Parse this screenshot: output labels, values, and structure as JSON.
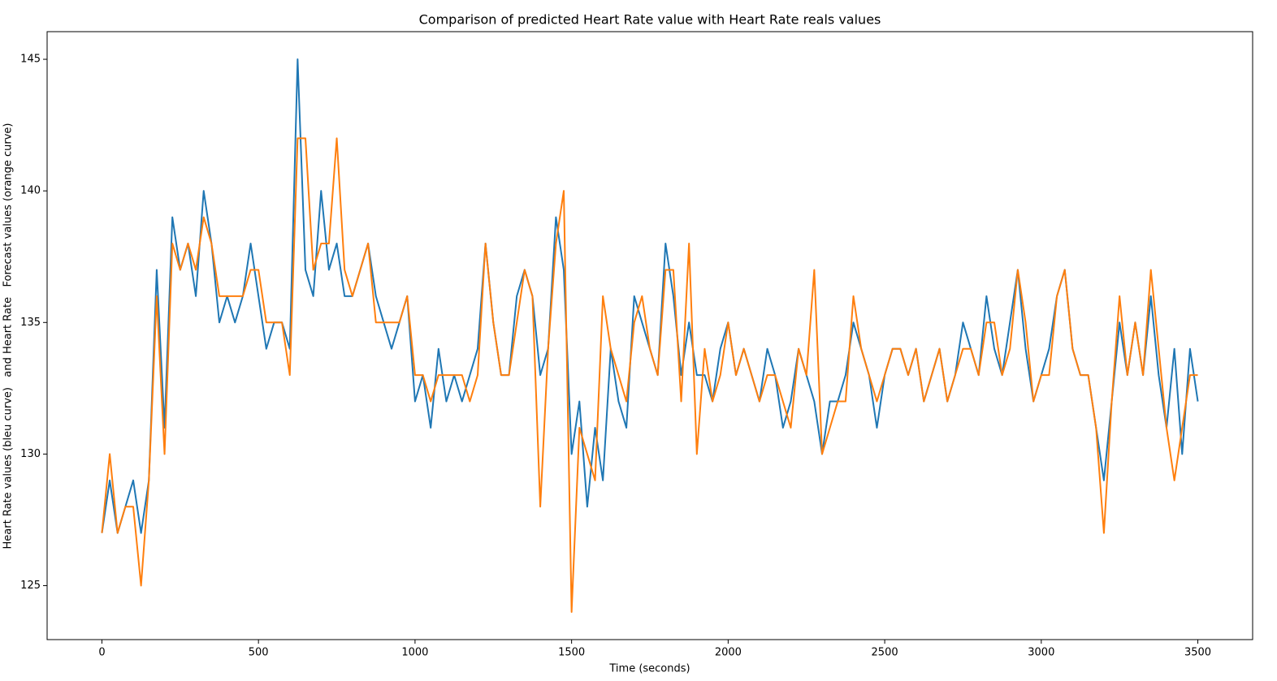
{
  "chart_data": {
    "type": "line",
    "title": "Comparison of predicted Heart Rate value with Heart Rate reals values",
    "xlabel": "Time (seconds)",
    "ylabel": "Heart Rate values (bleu curve)   and Heart Rate   Forecast values (orange curve)",
    "x": [
      0,
      25,
      50,
      75,
      100,
      125,
      150,
      175,
      200,
      225,
      250,
      275,
      300,
      325,
      350,
      375,
      400,
      425,
      450,
      475,
      500,
      525,
      550,
      575,
      600,
      625,
      650,
      675,
      700,
      725,
      750,
      775,
      800,
      825,
      850,
      875,
      900,
      925,
      950,
      975,
      1000,
      1025,
      1050,
      1075,
      1100,
      1125,
      1150,
      1175,
      1200,
      1225,
      1250,
      1275,
      1300,
      1325,
      1350,
      1375,
      1400,
      1425,
      1450,
      1475,
      1500,
      1525,
      1550,
      1575,
      1600,
      1625,
      1650,
      1675,
      1700,
      1725,
      1750,
      1775,
      1800,
      1825,
      1850,
      1875,
      1900,
      1925,
      1950,
      1975,
      2000,
      2025,
      2050,
      2075,
      2100,
      2125,
      2150,
      2175,
      2200,
      2225,
      2250,
      2275,
      2300,
      2325,
      2350,
      2375,
      2400,
      2425,
      2450,
      2475,
      2500,
      2525,
      2550,
      2575,
      2600,
      2625,
      2650,
      2675,
      2700,
      2725,
      2750,
      2775,
      2800,
      2825,
      2850,
      2875,
      2900,
      2925,
      2950,
      2975,
      3000,
      3025,
      3050,
      3075,
      3100,
      3125,
      3150,
      3175,
      3200,
      3225,
      3250,
      3275,
      3300,
      3325,
      3350,
      3375,
      3400,
      3425,
      3450,
      3475,
      3500
    ],
    "series": [
      {
        "color": "#1f77b4",
        "values": [
          127,
          129,
          127,
          128,
          129,
          127,
          129,
          137,
          131,
          139,
          137,
          138,
          136,
          140,
          138,
          135,
          136,
          135,
          136,
          138,
          136,
          134,
          135,
          135,
          134,
          145,
          137,
          136,
          140,
          137,
          138,
          136,
          136,
          137,
          138,
          136,
          135,
          134,
          135,
          136,
          132,
          133,
          131,
          134,
          132,
          133,
          132,
          133,
          134,
          138,
          135,
          133,
          133,
          136,
          137,
          136,
          133,
          134,
          139,
          137,
          130,
          132,
          128,
          131,
          129,
          134,
          132,
          131,
          136,
          135,
          134,
          133,
          138,
          136,
          133,
          135,
          133,
          133,
          132,
          134,
          135,
          133,
          134,
          133,
          132,
          134,
          133,
          131,
          132,
          134,
          133,
          132,
          130,
          132,
          132,
          133,
          135,
          134,
          133,
          131,
          133,
          134,
          134,
          133,
          134,
          132,
          133,
          134,
          132,
          133,
          135,
          134,
          133,
          136,
          134,
          133,
          135,
          137,
          134,
          132,
          133,
          134,
          136,
          137,
          134,
          133,
          133,
          131,
          129,
          132,
          135,
          133,
          135,
          133,
          136,
          133,
          131,
          134,
          130,
          134,
          132
        ]
      },
      {
        "color": "#ff7f0e",
        "values": [
          127,
          130,
          127,
          128,
          128,
          125,
          129,
          136,
          130,
          138,
          137,
          138,
          137,
          139,
          138,
          136,
          136,
          136,
          136,
          137,
          137,
          135,
          135,
          135,
          133,
          142,
          142,
          137,
          138,
          138,
          142,
          137,
          136,
          137,
          138,
          135,
          135,
          135,
          135,
          136,
          133,
          133,
          132,
          133,
          133,
          133,
          133,
          132,
          133,
          138,
          135,
          133,
          133,
          135,
          137,
          136,
          128,
          134,
          138,
          140,
          124,
          131,
          130,
          129,
          136,
          134,
          133,
          132,
          135,
          136,
          134,
          133,
          137,
          137,
          132,
          138,
          130,
          134,
          132,
          133,
          135,
          133,
          134,
          133,
          132,
          133,
          133,
          132,
          131,
          134,
          133,
          137,
          130,
          131,
          132,
          132,
          136,
          134,
          133,
          132,
          133,
          134,
          134,
          133,
          134,
          132,
          133,
          134,
          132,
          133,
          134,
          134,
          133,
          135,
          135,
          133,
          134,
          137,
          135,
          132,
          133,
          133,
          136,
          137,
          134,
          133,
          133,
          131,
          127,
          132,
          136,
          133,
          135,
          133,
          137,
          134,
          131,
          129,
          131,
          133,
          133
        ]
      }
    ],
    "xlim": [
      -175,
      3675
    ],
    "xticks": [
      0,
      500,
      1000,
      1500,
      2000,
      2500,
      3000,
      3500
    ],
    "ylim": [
      122.95,
      146.05
    ],
    "yticks": [
      125,
      130,
      135,
      140,
      145
    ]
  }
}
